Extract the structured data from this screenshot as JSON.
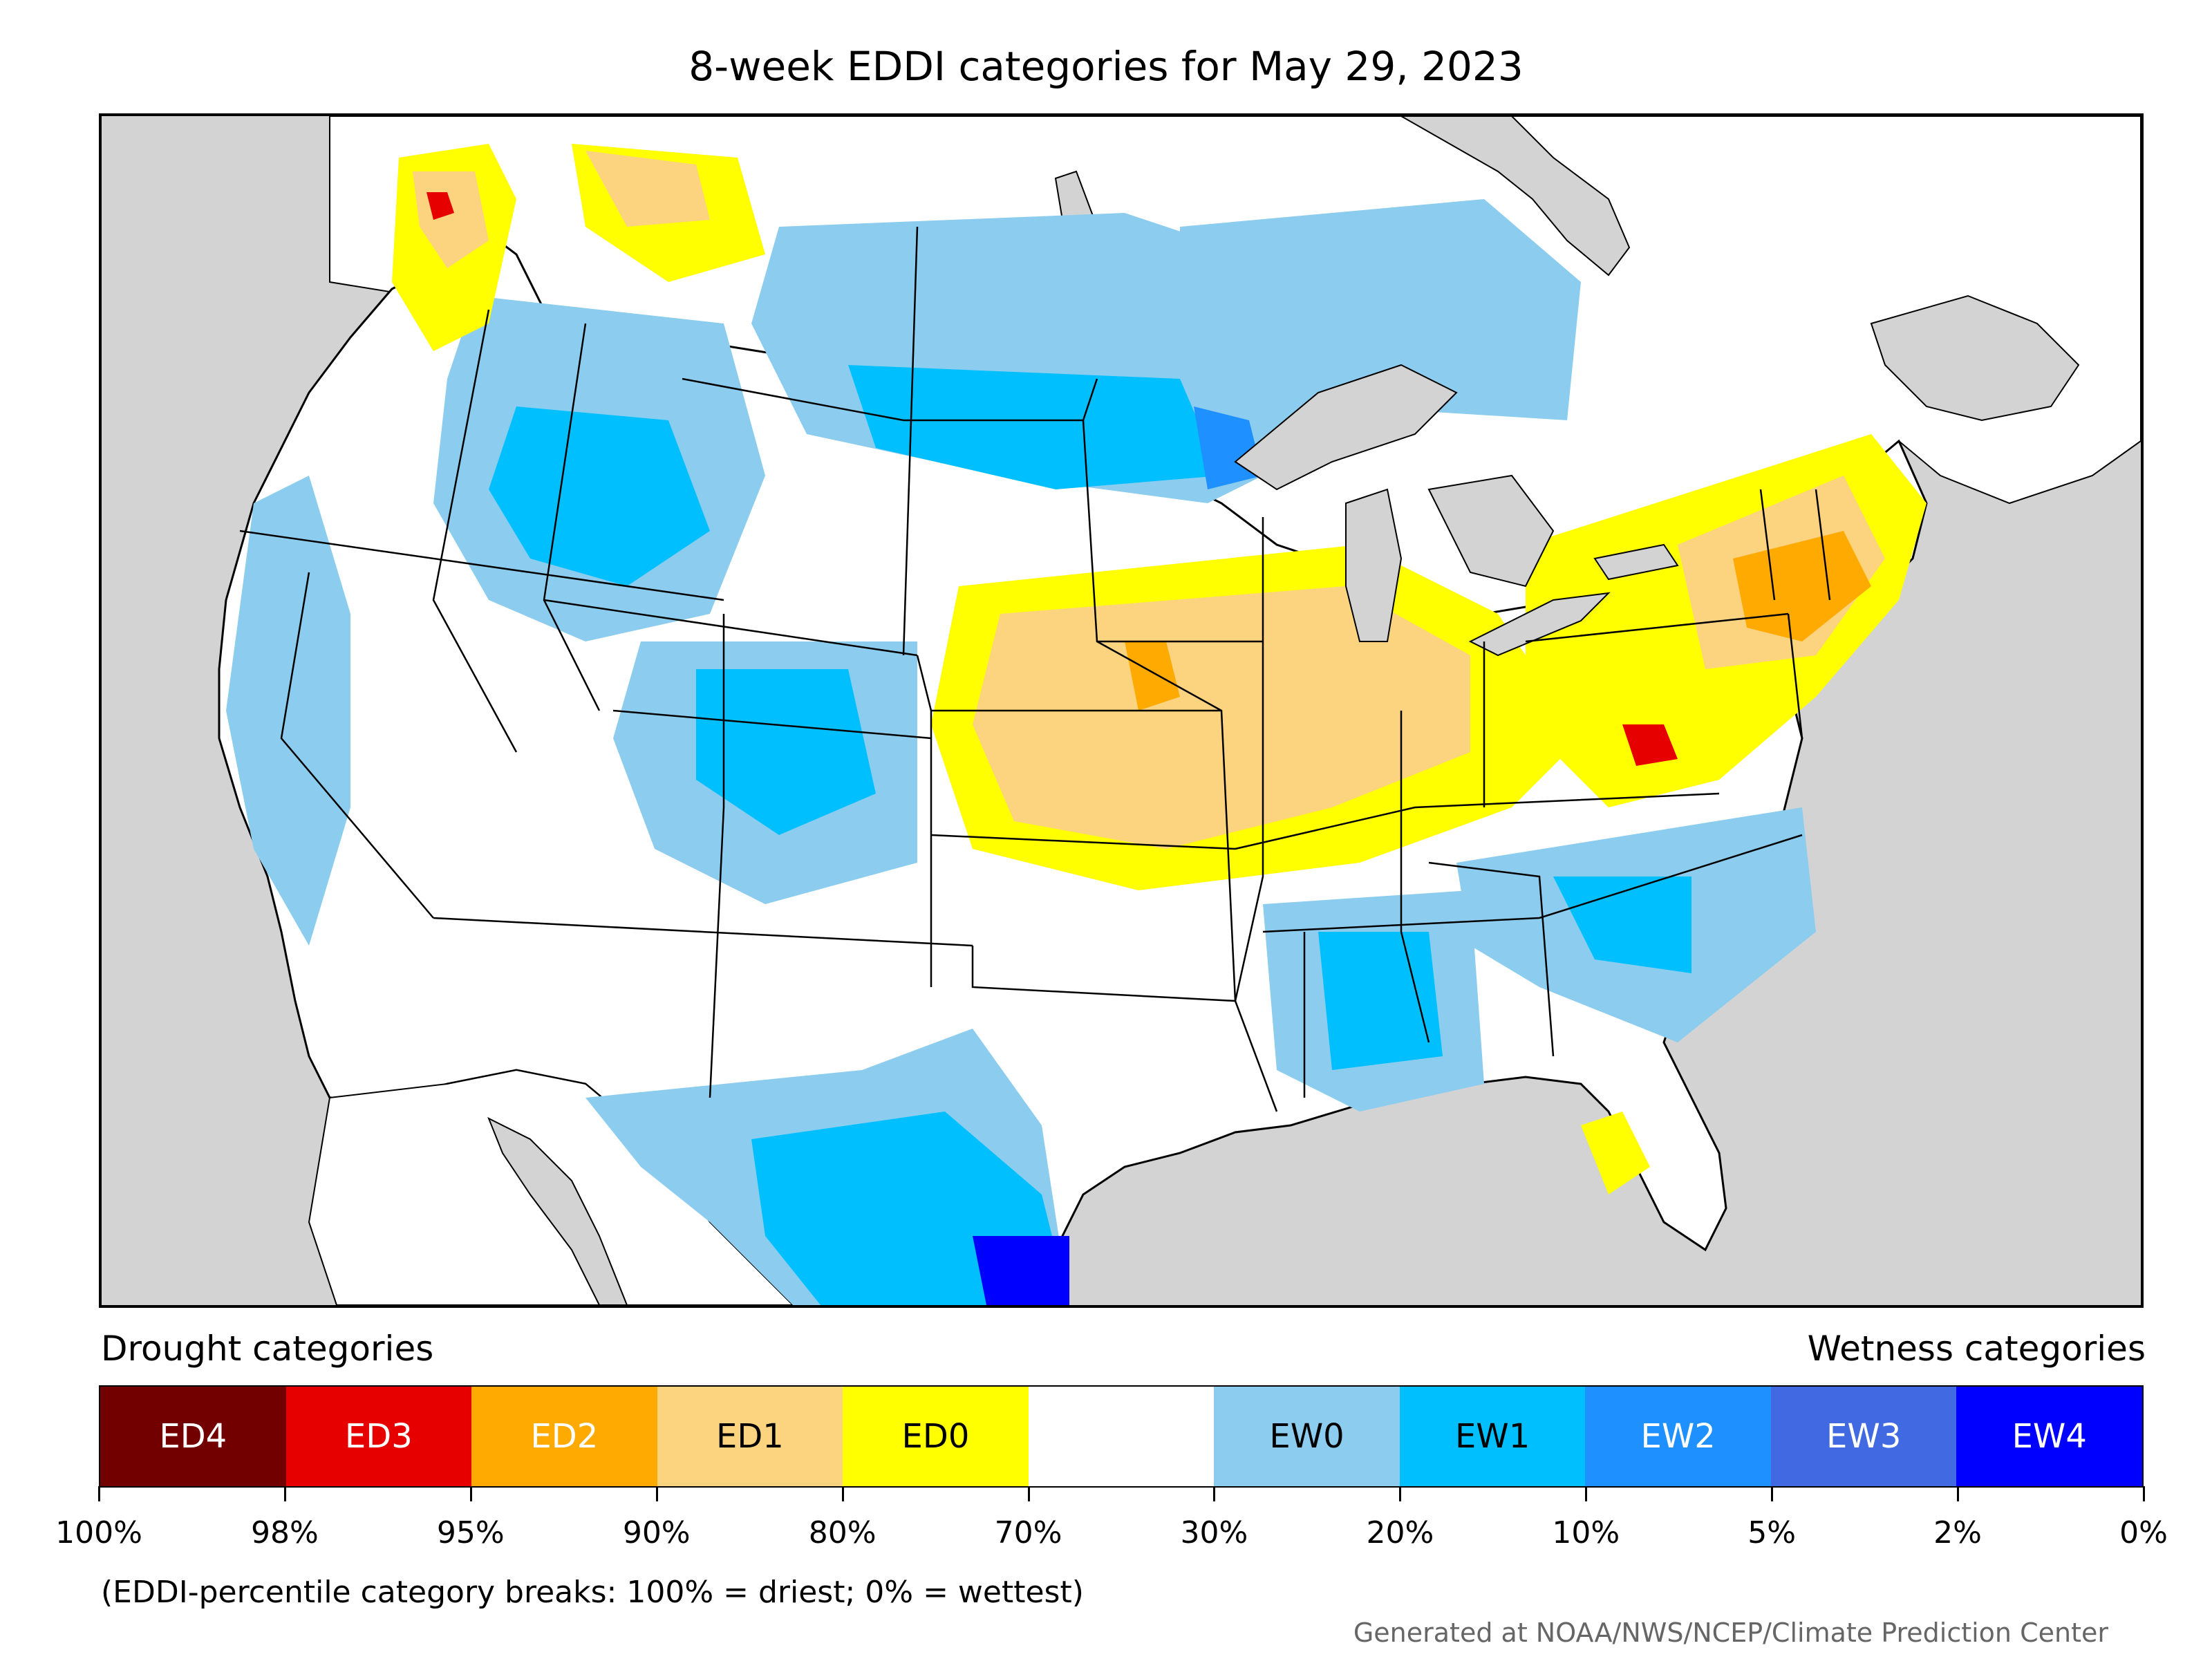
{
  "title": "8-week EDDI categories for May 29, 2023",
  "legend": {
    "drought_heading": "Drought categories",
    "wetness_heading": "Wetness categories",
    "categories": [
      {
        "label": "ED4",
        "color": "#730000",
        "text_color": "#ffffff"
      },
      {
        "label": "ED3",
        "color": "#e60000",
        "text_color": "#ffffff"
      },
      {
        "label": "ED2",
        "color": "#ffaa00",
        "text_color": "#ffffff"
      },
      {
        "label": "ED1",
        "color": "#fcd37f",
        "text_color": "#000000"
      },
      {
        "label": "ED0",
        "color": "#ffff00",
        "text_color": "#000000"
      },
      {
        "label": "",
        "color": "#ffffff",
        "text_color": "#000000"
      },
      {
        "label": "EW0",
        "color": "#8ccdef",
        "text_color": "#000000"
      },
      {
        "label": "EW1",
        "color": "#00bfff",
        "text_color": "#000000"
      },
      {
        "label": "EW2",
        "color": "#1e90ff",
        "text_color": "#ffffff"
      },
      {
        "label": "EW3",
        "color": "#4169e1",
        "text_color": "#ffffff"
      },
      {
        "label": "EW4",
        "color": "#0000ff",
        "text_color": "#ffffff"
      }
    ],
    "tick_labels": [
      "100%",
      "98%",
      "95%",
      "90%",
      "80%",
      "70%",
      "30%",
      "20%",
      "10%",
      "5%",
      "2%",
      "0%"
    ]
  },
  "breaks_note": "(EDDI-percentile category breaks: 100% = driest; 0% = wettest)",
  "credit": "Generated at NOAA/NWS/NCEP/Climate Prediction Center",
  "colors": {
    "ocean": "#d3d3d3",
    "land": "#ffffff",
    "borders": "#000000"
  }
}
